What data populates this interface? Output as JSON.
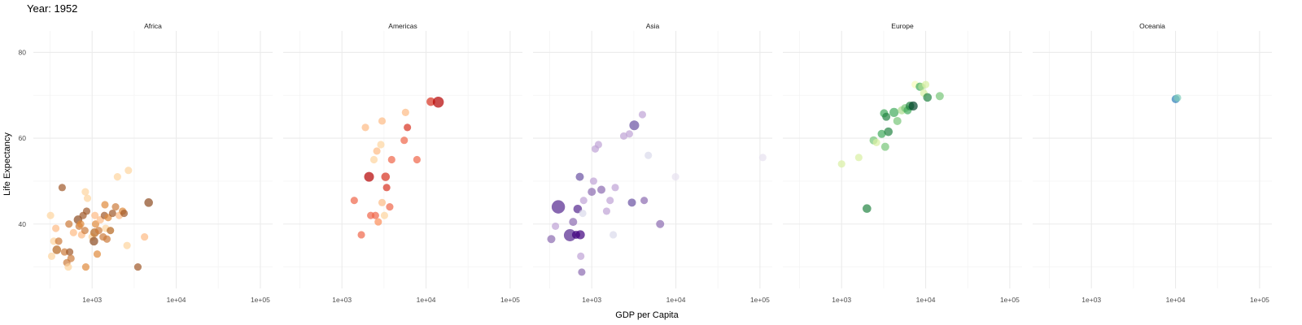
{
  "chart_data": {
    "type": "scatter",
    "title": "Year: 1952",
    "xlabel": "GDP per Capita",
    "ylabel": "Life Expectancy",
    "x_scale": "log10",
    "xlim": [
      200,
      140000
    ],
    "ylim": [
      25,
      85
    ],
    "x_ticks": [
      1000,
      10000,
      100000
    ],
    "x_tick_labels": [
      "1e+03",
      "1e+04",
      "1e+05"
    ],
    "y_ticks": [
      40,
      60,
      80
    ],
    "y_tick_labels": [
      "40",
      "60",
      "80"
    ],
    "grid": true,
    "legend": "none",
    "facets": [
      {
        "name": "Africa",
        "points": [
          {
            "x": 320,
            "y": 42,
            "size": 1.5,
            "color": "#fdd49e"
          },
          {
            "x": 370,
            "y": 39,
            "size": 1.5,
            "color": "#fdbb84"
          },
          {
            "x": 350,
            "y": 36,
            "size": 1.5,
            "color": "#fdd49e"
          },
          {
            "x": 330,
            "y": 32.5,
            "size": 1.5,
            "color": "#fdd49e"
          },
          {
            "x": 380,
            "y": 34,
            "size": 2,
            "color": "#b5651d"
          },
          {
            "x": 400,
            "y": 36,
            "size": 1.5,
            "color": "#cc7a3a"
          },
          {
            "x": 440,
            "y": 48.5,
            "size": 1.5,
            "color": "#a0582a"
          },
          {
            "x": 470,
            "y": 33.5,
            "size": 1.5,
            "color": "#cc7a3a"
          },
          {
            "x": 500,
            "y": 31,
            "size": 1.5,
            "color": "#cc7a3a"
          },
          {
            "x": 520,
            "y": 30,
            "size": 1.5,
            "color": "#fdd49e"
          },
          {
            "x": 540,
            "y": 33.5,
            "size": 1.5,
            "color": "#a0582a"
          },
          {
            "x": 560,
            "y": 32,
            "size": 1.5,
            "color": "#cc7a3a"
          },
          {
            "x": 600,
            "y": 38,
            "size": 1.5,
            "color": "#fdbb84"
          },
          {
            "x": 680,
            "y": 41,
            "size": 2,
            "color": "#8c4a1f"
          },
          {
            "x": 700,
            "y": 39.5,
            "size": 1.5,
            "color": "#cc7a3a"
          },
          {
            "x": 730,
            "y": 40,
            "size": 1.5,
            "color": "#e08a3c"
          },
          {
            "x": 750,
            "y": 37.5,
            "size": 1.5,
            "color": "#fdbb84"
          },
          {
            "x": 780,
            "y": 42,
            "size": 1.5,
            "color": "#a0582a"
          },
          {
            "x": 820,
            "y": 38.5,
            "size": 1.5,
            "color": "#cc7a3a"
          },
          {
            "x": 830,
            "y": 47.5,
            "size": 1.5,
            "color": "#fdd49e"
          },
          {
            "x": 860,
            "y": 43,
            "size": 1.5,
            "color": "#a0582a"
          },
          {
            "x": 880,
            "y": 46,
            "size": 1.5,
            "color": "#fdd49e"
          },
          {
            "x": 840,
            "y": 30,
            "size": 1.5,
            "color": "#e08a3c"
          },
          {
            "x": 530,
            "y": 40,
            "size": 1.5,
            "color": "#cc7a3a"
          },
          {
            "x": 1000,
            "y": 37,
            "size": 1.5,
            "color": "#fdd49e"
          },
          {
            "x": 1050,
            "y": 36,
            "size": 2,
            "color": "#8c4a1f"
          },
          {
            "x": 1070,
            "y": 38,
            "size": 2,
            "color": "#b5651d"
          },
          {
            "x": 1080,
            "y": 42,
            "size": 1.5,
            "color": "#fdbb84"
          },
          {
            "x": 1100,
            "y": 40,
            "size": 1.5,
            "color": "#e08a3c"
          },
          {
            "x": 1150,
            "y": 33,
            "size": 1.5,
            "color": "#e08a3c"
          },
          {
            "x": 1200,
            "y": 38.5,
            "size": 1.5,
            "color": "#cc7a3a"
          },
          {
            "x": 1250,
            "y": 41,
            "size": 1.5,
            "color": "#fdbb84"
          },
          {
            "x": 1350,
            "y": 37,
            "size": 1.5,
            "color": "#cc7a3a"
          },
          {
            "x": 1400,
            "y": 42,
            "size": 1.5,
            "color": "#a0582a"
          },
          {
            "x": 1420,
            "y": 44.5,
            "size": 1.5,
            "color": "#e08a3c"
          },
          {
            "x": 1450,
            "y": 39,
            "size": 1.5,
            "color": "#fdd49e"
          },
          {
            "x": 1500,
            "y": 36.5,
            "size": 1.5,
            "color": "#cc7a3a"
          },
          {
            "x": 1550,
            "y": 41.5,
            "size": 1.5,
            "color": "#e08a3c"
          },
          {
            "x": 1650,
            "y": 38.5,
            "size": 1.5,
            "color": "#b5651d"
          },
          {
            "x": 1750,
            "y": 42.5,
            "size": 1.5,
            "color": "#a0582a"
          },
          {
            "x": 1900,
            "y": 44,
            "size": 1.5,
            "color": "#cc7a3a"
          },
          {
            "x": 2000,
            "y": 51,
            "size": 1.5,
            "color": "#fdd49e"
          },
          {
            "x": 2100,
            "y": 42,
            "size": 1.5,
            "color": "#fdbb84"
          },
          {
            "x": 2300,
            "y": 43,
            "size": 1.5,
            "color": "#e08a3c"
          },
          {
            "x": 2400,
            "y": 42.5,
            "size": 1.5,
            "color": "#a0582a"
          },
          {
            "x": 2600,
            "y": 35,
            "size": 1.5,
            "color": "#fdd49e"
          },
          {
            "x": 2700,
            "y": 52.5,
            "size": 1.5,
            "color": "#fdd49e"
          },
          {
            "x": 3500,
            "y": 30,
            "size": 1.5,
            "color": "#a0582a"
          },
          {
            "x": 4200,
            "y": 37,
            "size": 1.5,
            "color": "#fdbb84"
          },
          {
            "x": 4700,
            "y": 45,
            "size": 2,
            "color": "#8c4a1f"
          }
        ]
      },
      {
        "name": "Americas",
        "points": [
          {
            "x": 1400,
            "y": 45.5,
            "size": 1.5,
            "color": "#ef6548"
          },
          {
            "x": 1700,
            "y": 37.5,
            "size": 1.5,
            "color": "#ef6548"
          },
          {
            "x": 1900,
            "y": 62.5,
            "size": 1.5,
            "color": "#fdbb84"
          },
          {
            "x": 2100,
            "y": 51,
            "size": 2.5,
            "color": "#b30000"
          },
          {
            "x": 2200,
            "y": 42,
            "size": 1.5,
            "color": "#ef6548"
          },
          {
            "x": 2400,
            "y": 55,
            "size": 1.5,
            "color": "#fdd49e"
          },
          {
            "x": 2500,
            "y": 42,
            "size": 1.5,
            "color": "#ef6548"
          },
          {
            "x": 2600,
            "y": 57,
            "size": 1.5,
            "color": "#fdbb84"
          },
          {
            "x": 2700,
            "y": 40.5,
            "size": 1.5,
            "color": "#fc8d59"
          },
          {
            "x": 2900,
            "y": 58.5,
            "size": 1.5,
            "color": "#fdd49e"
          },
          {
            "x": 3000,
            "y": 64,
            "size": 1.5,
            "color": "#fdbb84"
          },
          {
            "x": 3000,
            "y": 45,
            "size": 1.5,
            "color": "#fdbb84"
          },
          {
            "x": 3200,
            "y": 42,
            "size": 1.5,
            "color": "#fdd49e"
          },
          {
            "x": 3300,
            "y": 51,
            "size": 2,
            "color": "#d7301f"
          },
          {
            "x": 3400,
            "y": 48.5,
            "size": 1.5,
            "color": "#d7301f"
          },
          {
            "x": 3700,
            "y": 44,
            "size": 1.5,
            "color": "#ef6548"
          },
          {
            "x": 3900,
            "y": 55,
            "size": 1.5,
            "color": "#ef6548"
          },
          {
            "x": 5500,
            "y": 59.5,
            "size": 1.5,
            "color": "#ef6548"
          },
          {
            "x": 5700,
            "y": 66,
            "size": 1.5,
            "color": "#fdbb84"
          },
          {
            "x": 6000,
            "y": 62.5,
            "size": 1.5,
            "color": "#d7301f"
          },
          {
            "x": 7800,
            "y": 55,
            "size": 1.5,
            "color": "#ef6548"
          },
          {
            "x": 11400,
            "y": 68.5,
            "size": 2,
            "color": "#d7301f"
          },
          {
            "x": 13990,
            "y": 68.4,
            "size": 3,
            "color": "#b30000"
          }
        ]
      },
      {
        "name": "Asia",
        "points": [
          {
            "x": 330,
            "y": 36.5,
            "size": 1.8,
            "color": "#8c6bb1"
          },
          {
            "x": 370,
            "y": 39.5,
            "size": 1.5,
            "color": "#bfa2d6"
          },
          {
            "x": 400,
            "y": 44,
            "size": 4,
            "color": "#54278f"
          },
          {
            "x": 550,
            "y": 37.4,
            "size": 3.5,
            "color": "#54278f"
          },
          {
            "x": 600,
            "y": 40.5,
            "size": 1.8,
            "color": "#8c6bb1"
          },
          {
            "x": 650,
            "y": 37.5,
            "size": 1.8,
            "color": "#3f007d"
          },
          {
            "x": 680,
            "y": 43.5,
            "size": 2,
            "color": "#54278f"
          },
          {
            "x": 720,
            "y": 51,
            "size": 1.8,
            "color": "#6a51a3"
          },
          {
            "x": 730,
            "y": 37.5,
            "size": 2.2,
            "color": "#3f007d"
          },
          {
            "x": 740,
            "y": 32.5,
            "size": 1.5,
            "color": "#bfa2d6"
          },
          {
            "x": 760,
            "y": 28.8,
            "size": 1.5,
            "color": "#8c6bb1"
          },
          {
            "x": 780,
            "y": 42.5,
            "size": 1.5,
            "color": "#dadaeb"
          },
          {
            "x": 800,
            "y": 45.5,
            "size": 1.5,
            "color": "#bfa2d6"
          },
          {
            "x": 1000,
            "y": 47.5,
            "size": 1.8,
            "color": "#8c6bb1"
          },
          {
            "x": 1050,
            "y": 50,
            "size": 1.5,
            "color": "#bfa2d6"
          },
          {
            "x": 1100,
            "y": 57.5,
            "size": 1.5,
            "color": "#bfa2d6"
          },
          {
            "x": 1200,
            "y": 58.5,
            "size": 1.5,
            "color": "#bfa2d6"
          },
          {
            "x": 1300,
            "y": 48,
            "size": 1.8,
            "color": "#8c6bb1"
          },
          {
            "x": 1500,
            "y": 43,
            "size": 1.5,
            "color": "#bfa2d6"
          },
          {
            "x": 1650,
            "y": 45.5,
            "size": 1.5,
            "color": "#bfa2d6"
          },
          {
            "x": 1800,
            "y": 37.5,
            "size": 1.5,
            "color": "#dadaeb"
          },
          {
            "x": 1900,
            "y": 48.5,
            "size": 1.5,
            "color": "#bfa2d6"
          },
          {
            "x": 2400,
            "y": 60.5,
            "size": 1.5,
            "color": "#bfa2d6"
          },
          {
            "x": 2800,
            "y": 61,
            "size": 1.5,
            "color": "#bfa2d6"
          },
          {
            "x": 3000,
            "y": 45,
            "size": 1.8,
            "color": "#6a51a3"
          },
          {
            "x": 3200,
            "y": 63,
            "size": 2.5,
            "color": "#6a51a3"
          },
          {
            "x": 4000,
            "y": 65.5,
            "size": 1.5,
            "color": "#bfa2d6"
          },
          {
            "x": 4200,
            "y": 45.5,
            "size": 1.5,
            "color": "#8c6bb1"
          },
          {
            "x": 4700,
            "y": 56,
            "size": 1.5,
            "color": "#dadaeb"
          },
          {
            "x": 6500,
            "y": 40,
            "size": 1.8,
            "color": "#8c6bb1"
          },
          {
            "x": 9900,
            "y": 51,
            "size": 1.5,
            "color": "#e7e1ef"
          },
          {
            "x": 108000,
            "y": 55.5,
            "size": 1.5,
            "color": "#e7e1ef"
          }
        ]
      },
      {
        "name": "Europe",
        "points": [
          {
            "x": 1000,
            "y": 54,
            "size": 1.5,
            "color": "#d9f0a3"
          },
          {
            "x": 1600,
            "y": 55.5,
            "size": 1.5,
            "color": "#d9f0a3"
          },
          {
            "x": 2000,
            "y": 43.6,
            "size": 2,
            "color": "#238443"
          },
          {
            "x": 2400,
            "y": 59.5,
            "size": 1.8,
            "color": "#78c679"
          },
          {
            "x": 2600,
            "y": 59,
            "size": 1.5,
            "color": "#d9f0a3"
          },
          {
            "x": 3000,
            "y": 61,
            "size": 1.8,
            "color": "#41ab5d"
          },
          {
            "x": 3200,
            "y": 65.8,
            "size": 1.8,
            "color": "#41ab5d"
          },
          {
            "x": 3300,
            "y": 58,
            "size": 1.8,
            "color": "#78c679"
          },
          {
            "x": 3400,
            "y": 65,
            "size": 1.8,
            "color": "#238443"
          },
          {
            "x": 3600,
            "y": 61.5,
            "size": 2,
            "color": "#238443"
          },
          {
            "x": 4200,
            "y": 66,
            "size": 2.2,
            "color": "#41ab5d"
          },
          {
            "x": 4600,
            "y": 64,
            "size": 1.8,
            "color": "#78c679"
          },
          {
            "x": 5200,
            "y": 66.5,
            "size": 1.8,
            "color": "#addd8e"
          },
          {
            "x": 5700,
            "y": 67,
            "size": 1.8,
            "color": "#78c679"
          },
          {
            "x": 6100,
            "y": 66.5,
            "size": 1.8,
            "color": "#41ab5d"
          },
          {
            "x": 6500,
            "y": 67.5,
            "size": 2,
            "color": "#238443"
          },
          {
            "x": 7100,
            "y": 67.5,
            "size": 2.2,
            "color": "#004529"
          },
          {
            "x": 7500,
            "y": 72.5,
            "size": 1.5,
            "color": "#f7fcb9"
          },
          {
            "x": 8500,
            "y": 72,
            "size": 1.8,
            "color": "#41ab5d"
          },
          {
            "x": 9000,
            "y": 72,
            "size": 1.5,
            "color": "#addd8e"
          },
          {
            "x": 9500,
            "y": 70.5,
            "size": 1.5,
            "color": "#d9f0a3"
          },
          {
            "x": 10000,
            "y": 72.5,
            "size": 1.5,
            "color": "#d9f0a3"
          },
          {
            "x": 10500,
            "y": 69.5,
            "size": 2,
            "color": "#238443"
          },
          {
            "x": 14700,
            "y": 69.8,
            "size": 1.8,
            "color": "#78c679"
          }
        ]
      },
      {
        "name": "Oceania",
        "points": [
          {
            "x": 10040,
            "y": 69.1,
            "size": 1.8,
            "color": "#2c7fb8"
          },
          {
            "x": 10560,
            "y": 69.4,
            "size": 1.5,
            "color": "#7fcdbb"
          }
        ]
      }
    ]
  },
  "colors": {
    "background": "#ffffff",
    "grid_major": "#ebebeb",
    "grid_minor": "#f4f4f4",
    "text": "#000000",
    "tick_text": "#4d4d4d"
  }
}
